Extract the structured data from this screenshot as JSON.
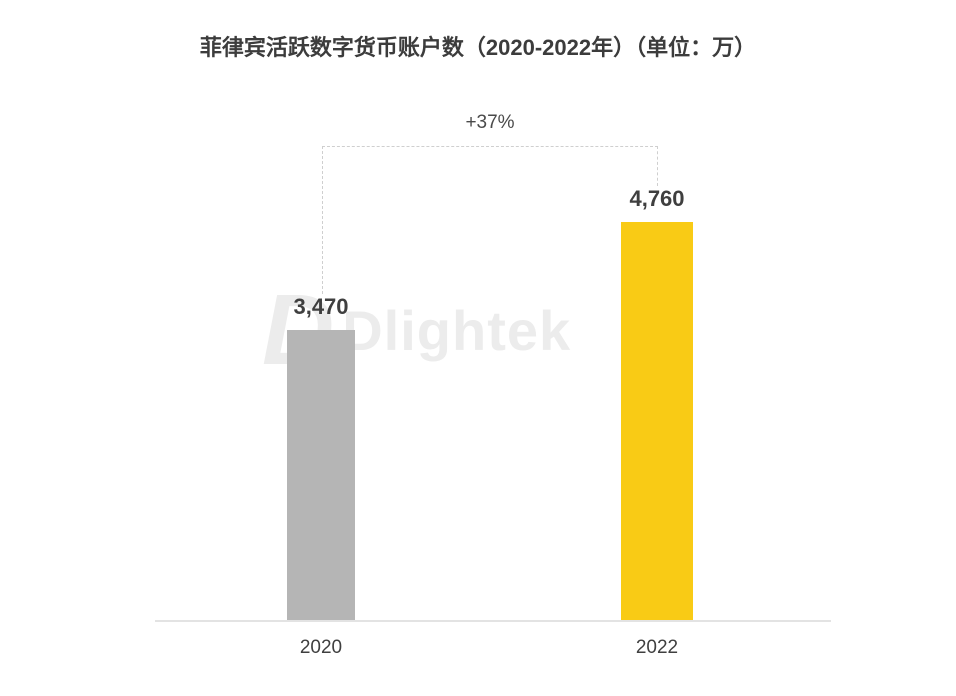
{
  "title": "菲律宾活跃数字货币账户数（2020-2022年）（单位：万）",
  "watermark": {
    "logo": "D",
    "brand": "Dlightek"
  },
  "chart_data": {
    "type": "bar",
    "title": "菲律宾活跃数字货币账户数（2020-2022年）（单位：万）",
    "categories": [
      "2020",
      "2022"
    ],
    "values": [
      3470,
      4760
    ],
    "value_labels": [
      "3,470",
      "4,760"
    ],
    "unit": "万",
    "annotation": "+37%",
    "bar_colors": [
      "#b5b5b5",
      "#f9cb15"
    ],
    "xlabel": "",
    "ylabel": "",
    "ylim": [
      0,
      5690
    ],
    "grid": false,
    "legend": false
  },
  "colors": {
    "background": "#ffffff",
    "title_text": "#3c3c3c",
    "label_text": "#3f3f3f",
    "annotation_text": "#4a4a4a",
    "axis_line": "#e3e3e3",
    "dashed_line": "#cfcfcf",
    "watermark": "#ececec",
    "bar_2020": "#b5b5b5",
    "bar_2022": "#f9cb15"
  }
}
